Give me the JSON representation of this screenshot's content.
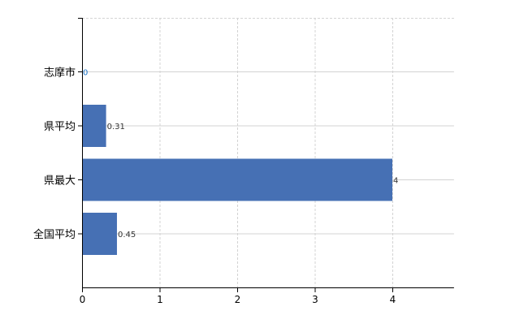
{
  "chart_data": {
    "type": "bar",
    "orientation": "horizontal",
    "categories": [
      "志摩市",
      "県平均",
      "県最大",
      "全国平均"
    ],
    "values": [
      0,
      0.31,
      4,
      0.45
    ],
    "value_labels": [
      "0",
      "0.31",
      "4",
      "0.45"
    ],
    "xticks": [
      "0",
      "1",
      "2",
      "3",
      "4"
    ],
    "xlim": [
      0,
      4.8
    ],
    "grid": true,
    "bar_color": "#4670b4",
    "axis_color": "#000000",
    "grid_color": "#d3d3d3"
  }
}
